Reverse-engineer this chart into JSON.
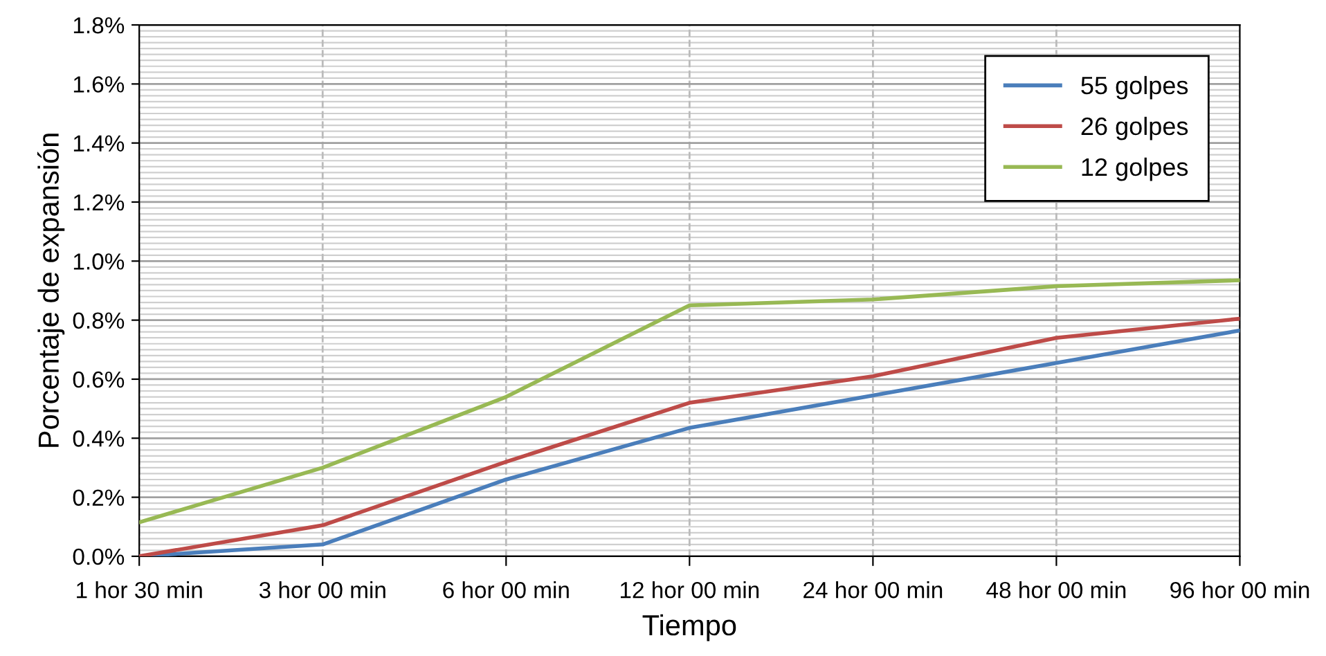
{
  "chart_data": {
    "type": "line",
    "xlabel": "Tiempo",
    "ylabel": "Porcentaje de expansión",
    "categories": [
      "1 hor 30 min",
      "3 hor 00 min",
      "6 hor 00 min",
      "12 hor 00 min",
      "24 hor 00 min",
      "48 hor 00 min",
      "96 hor 00 min"
    ],
    "series": [
      {
        "name": "55 golpes",
        "color": "#4a7ebb",
        "values": [
          0,
          0.04,
          0.26,
          0.435,
          0.545,
          0.655,
          0.765
        ]
      },
      {
        "name": "26 golpes",
        "color": "#be4b48",
        "values": [
          0,
          0.105,
          0.32,
          0.52,
          0.61,
          0.74,
          0.805
        ]
      },
      {
        "name": "12 golpes",
        "color": "#98b954",
        "values": [
          0.115,
          0.3,
          0.54,
          0.85,
          0.87,
          0.915,
          0.935
        ]
      }
    ],
    "ylim": [
      0,
      1.8
    ],
    "yticks": [
      {
        "value": 0,
        "label": "0.0%"
      },
      {
        "value": 0.2,
        "label": "0.2%"
      },
      {
        "value": 0.4,
        "label": "0.4%"
      },
      {
        "value": 0.6,
        "label": "0.6%"
      },
      {
        "value": 0.8,
        "label": "0.8%"
      },
      {
        "value": 1.0,
        "label": "1.0%"
      },
      {
        "value": 1.2,
        "label": "1.2%"
      },
      {
        "value": 1.4,
        "label": "1.4%"
      },
      {
        "value": 1.6,
        "label": "1.6%"
      },
      {
        "value": 1.8,
        "label": "1.8%"
      }
    ],
    "grid": true,
    "legend": "top right",
    "marker": "none",
    "line_style": "solid"
  }
}
